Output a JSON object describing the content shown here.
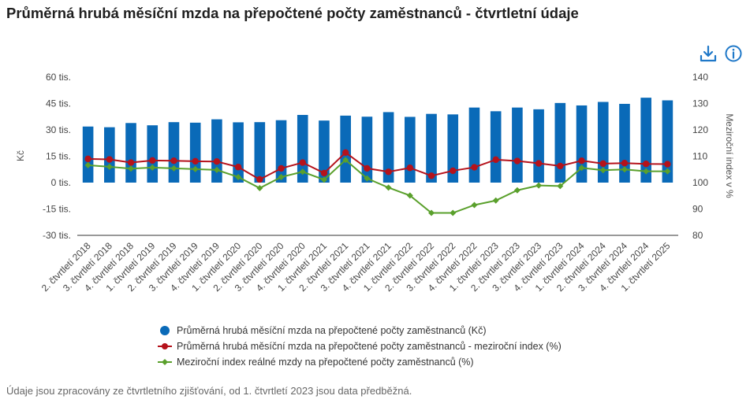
{
  "title": "Průměrná hrubá měsíční mzda na přepočtené počty zaměstnanců - čtvrtletní údaje",
  "footnote": "Údaje jsou zpracovány ze čtvrtletního zjišťování, od 1. čtvrtletí 2023 jsou data předběžná.",
  "toolbar": {
    "download_icon": "download-icon",
    "info_icon": "info-icon"
  },
  "colors": {
    "bars": "#0a6ab8",
    "nominal_index": "#b5121b",
    "real_index": "#5aa02c",
    "axis": "#333333"
  },
  "chart_data": {
    "type": "bar",
    "categories": [
      "2. čtvrtletí 2018",
      "3. čtvrtletí 2018",
      "4. čtvrtletí 2018",
      "1. čtvrtletí 2019",
      "2. čtvrtletí 2019",
      "3. čtvrtletí 2019",
      "4. čtvrtletí 2019",
      "1. čtvrtletí 2020",
      "2. čtvrtletí 2020",
      "3. čtvrtletí 2020",
      "4. čtvrtletí 2020",
      "1. čtvrtletí 2021",
      "2. čtvrtletí 2021",
      "3. čtvrtletí 2021",
      "4. čtvrtletí 2021",
      "1. čtvrtletí 2022",
      "2. čtvrtletí 2022",
      "3. čtvrtletí 2022",
      "4. čtvrtletí 2022",
      "1. čtvrtletí 2023",
      "2. čtvrtletí 2023",
      "3. čtvrtletí 2023",
      "4. čtvrtletí 2023",
      "1. čtvrtletí 2024",
      "2. čtvrtletí 2024",
      "3. čtvrtletí 2024",
      "4. čtvrtletí 2024",
      "1. čtvrtletí 2025"
    ],
    "series": [
      {
        "name": "Průměrná hrubá měsíční mzda na přepočtené počty zaměstnanců (Kč)",
        "type": "bar",
        "axis": "left",
        "values": [
          31900,
          31500,
          33900,
          32600,
          34400,
          34100,
          36000,
          34300,
          34400,
          35500,
          38500,
          35300,
          38100,
          37500,
          40100,
          37400,
          39100,
          38800,
          42700,
          40600,
          42700,
          41700,
          45300,
          43900,
          45900,
          44800,
          48300,
          46800
        ]
      },
      {
        "name": "Průměrná hrubá měsíční mzda na přepočtené počty zaměstnanců - meziroční index (%)",
        "type": "line",
        "axis": "right",
        "values": [
          109.0,
          108.8,
          107.6,
          108.4,
          108.3,
          108.1,
          108.0,
          105.9,
          101.2,
          105.4,
          107.6,
          103.6,
          111.4,
          105.4,
          104.1,
          105.6,
          102.6,
          104.5,
          105.8,
          108.7,
          108.2,
          107.3,
          106.3,
          108.3,
          107.2,
          107.4,
          107.1,
          107.0
        ]
      },
      {
        "name": "Meziroční index reálné mzdy na přepočtené počty zaměstnanců (%)",
        "type": "line",
        "axis": "right",
        "values": [
          106.6,
          106.0,
          105.3,
          105.7,
          105.4,
          105.1,
          104.8,
          102.1,
          97.9,
          102.1,
          104.1,
          101.1,
          108.6,
          101.6,
          98.1,
          95.1,
          88.5,
          88.5,
          91.5,
          93.2,
          97.1,
          98.9,
          98.7,
          105.6,
          104.7,
          105.0,
          104.3,
          104.3
        ]
      }
    ],
    "ylabel_left": "Kč",
    "ylabel_right": "Meziroční index v %",
    "ylim_left": [
      -30000,
      60000
    ],
    "ylim_right": [
      80,
      140
    ],
    "yticks_left": [
      "60 tis.",
      "45 tis.",
      "30 tis.",
      "15 tis.",
      "0 tis.",
      "-15 tis.",
      "-30 tis."
    ],
    "yticks_right": [
      "140",
      "130",
      "120",
      "110",
      "100",
      "90",
      "80"
    ],
    "grid": false,
    "legend_position": "bottom"
  }
}
